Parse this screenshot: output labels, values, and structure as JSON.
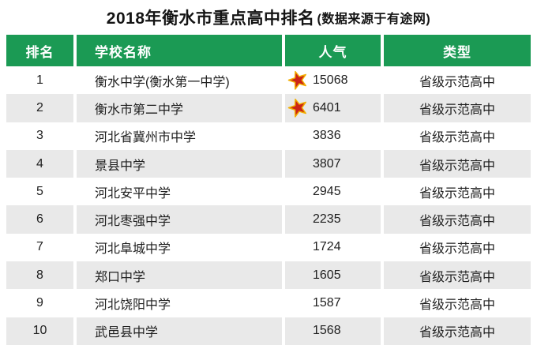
{
  "title": {
    "main": "2018年衡水市重点高中排名",
    "note": "(数据来源于有途网)"
  },
  "colors": {
    "header_bg": "#1b9a54",
    "row_alt_bg": "#e9e9e9",
    "star_fill": "#cc2418",
    "star_stroke": "#f2ae00",
    "text": "#202020"
  },
  "table": {
    "headers": [
      "排名",
      "学校名称",
      "人气",
      "类型"
    ],
    "rows": [
      {
        "rank": "1",
        "school": "衡水中学(衡水第一中学)",
        "starred": true,
        "popularity": "15068",
        "type": "省级示范高中"
      },
      {
        "rank": "2",
        "school": "衡水市第二中学",
        "starred": true,
        "popularity": "6401",
        "type": "省级示范高中"
      },
      {
        "rank": "3",
        "school": "河北省冀州市中学",
        "starred": false,
        "popularity": "3836",
        "type": "省级示范高中"
      },
      {
        "rank": "4",
        "school": "景县中学",
        "starred": false,
        "popularity": "3807",
        "type": "省级示范高中"
      },
      {
        "rank": "5",
        "school": "河北安平中学",
        "starred": false,
        "popularity": "2945",
        "type": "省级示范高中"
      },
      {
        "rank": "6",
        "school": "河北枣强中学",
        "starred": false,
        "popularity": "2235",
        "type": "省级示范高中"
      },
      {
        "rank": "7",
        "school": "河北阜城中学",
        "starred": false,
        "popularity": "1724",
        "type": "省级示范高中"
      },
      {
        "rank": "8",
        "school": "郑口中学",
        "starred": false,
        "popularity": "1605",
        "type": "省级示范高中"
      },
      {
        "rank": "9",
        "school": "河北饶阳中学",
        "starred": false,
        "popularity": "1587",
        "type": "省级示范高中"
      },
      {
        "rank": "10",
        "school": "武邑县中学",
        "starred": false,
        "popularity": "1568",
        "type": "省级示范高中"
      }
    ]
  },
  "chart_data": {
    "type": "table",
    "title": "2018年衡水市重点高中排名",
    "subtitle": "(数据来源于有途网)",
    "columns": [
      "排名",
      "学校名称",
      "人气",
      "类型"
    ],
    "rows": [
      [
        1,
        "衡水中学(衡水第一中学)",
        15068,
        "省级示范高中"
      ],
      [
        2,
        "衡水市第二中学",
        6401,
        "省级示范高中"
      ],
      [
        3,
        "河北省冀州市中学",
        3836,
        "省级示范高中"
      ],
      [
        4,
        "景县中学",
        3807,
        "省级示范高中"
      ],
      [
        5,
        "河北安平中学",
        2945,
        "省级示范高中"
      ],
      [
        6,
        "河北枣强中学",
        2235,
        "省级示范高中"
      ],
      [
        7,
        "河北阜城中学",
        1724,
        "省级示范高中"
      ],
      [
        8,
        "郑口中学",
        1605,
        "省级示范高中"
      ],
      [
        9,
        "河北饶阳中学",
        1587,
        "省级示范高中"
      ],
      [
        10,
        "武邑县中学",
        1568,
        "省级示范高中"
      ]
    ],
    "layout_hints": {
      "header_style": "green background, white bold text",
      "zebra_striping": "even ranks light gray",
      "star_icon_rows": [
        1,
        2
      ]
    }
  }
}
